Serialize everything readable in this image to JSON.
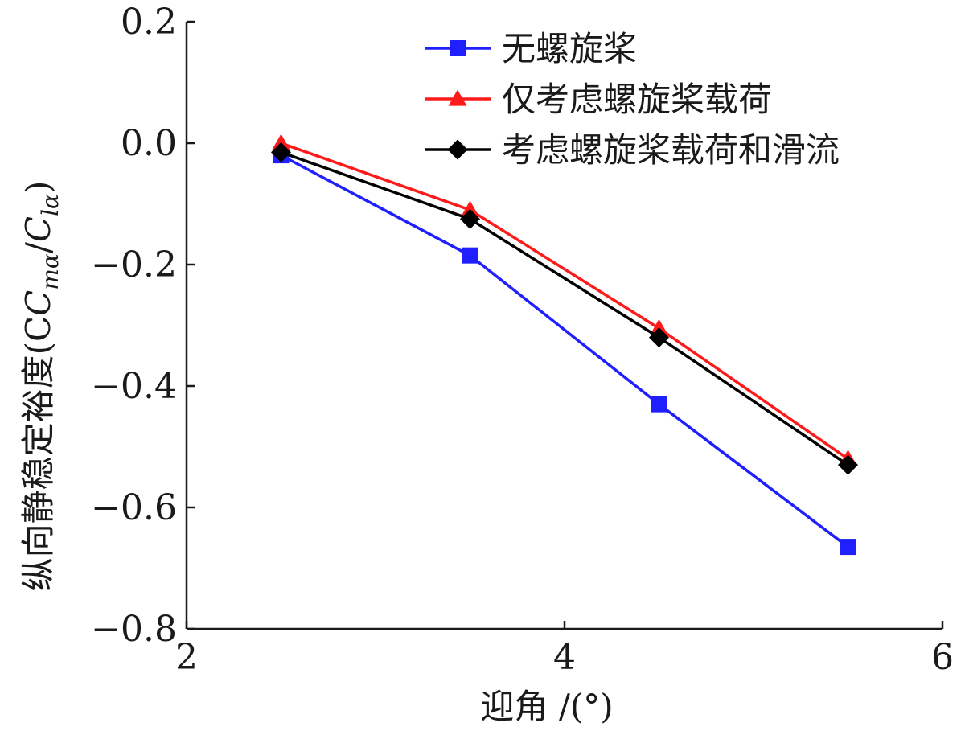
{
  "chart_data": {
    "type": "line",
    "xlabel": "迎角 /(°)",
    "ylabel": "纵向静稳定裕度(C",
    "ylabel_math": {
      "c1": "C",
      "sub1": "mα",
      "slash": "/",
      "c2": "C",
      "sub2": "lα",
      "close": ")"
    },
    "xlim": [
      2,
      6
    ],
    "ylim": [
      -0.8,
      0.2
    ],
    "xticks": [
      2,
      4,
      6
    ],
    "xtick_labels": [
      "2",
      "4",
      "6"
    ],
    "yticks": [
      0.2,
      0.0,
      -0.2,
      -0.4,
      -0.6,
      -0.8
    ],
    "ytick_labels": [
      "0.2",
      "0.0",
      "−0.2",
      "−0.4",
      "−0.6",
      "−0.8"
    ],
    "grid": false,
    "legend_position": "top-right",
    "x": [
      2.5,
      3.5,
      4.5,
      5.5
    ],
    "series": [
      {
        "name": "无螺旋桨",
        "color": "#1f1fff",
        "marker": "square",
        "values": [
          -0.02,
          -0.185,
          -0.43,
          -0.665
        ]
      },
      {
        "name": "仅考虑螺旋桨载荷",
        "color": "#ff1a1a",
        "marker": "triangle",
        "values": [
          0.0,
          -0.11,
          -0.305,
          -0.52
        ]
      },
      {
        "name": "考虑螺旋桨载荷和滑流",
        "color": "#000000",
        "marker": "diamond",
        "values": [
          -0.015,
          -0.125,
          -0.32,
          -0.53
        ]
      }
    ]
  }
}
